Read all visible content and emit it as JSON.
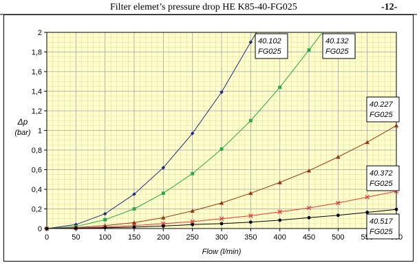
{
  "header": {
    "title": "Filter elemet’s pressure drop HE K85-40-FG025",
    "page_number": "-12-"
  },
  "chart_data": {
    "type": "line",
    "title": "Filter elemet’s pressure drop HE K85-40-FG025",
    "xlabel": "Flow (l/min)",
    "ylabel": [
      "Δp",
      "(bar)"
    ],
    "xlim": [
      0,
      600
    ],
    "ylim": [
      0,
      2
    ],
    "x_ticks": [
      "0",
      "50",
      "100",
      "150",
      "200",
      "250",
      "300",
      "350",
      "400",
      "450",
      "500",
      "550",
      "600"
    ],
    "y_ticks": [
      "0",
      "0,2",
      "0,4",
      "0,6",
      "0,8",
      "1",
      "1,2",
      "1,4",
      "1,6",
      "1,8",
      "2"
    ],
    "grid": true,
    "background": "#ffffcc",
    "series": [
      {
        "name": "40.102 FG025",
        "label_lines": [
          "40.102",
          "FG025"
        ],
        "color": "#1f2a80",
        "marker": "diamond",
        "x": [
          0,
          50,
          100,
          150,
          200,
          250,
          300,
          350
        ],
        "y": [
          0,
          0.04,
          0.15,
          0.35,
          0.62,
          0.97,
          1.39,
          1.9
        ]
      },
      {
        "name": "40.132 FG025",
        "label_lines": [
          "40.132",
          "FG025"
        ],
        "color": "#22aa44",
        "marker": "square",
        "x": [
          0,
          50,
          100,
          150,
          200,
          250,
          300,
          350,
          400,
          450
        ],
        "y": [
          0,
          0.02,
          0.09,
          0.2,
          0.36,
          0.56,
          0.81,
          1.1,
          1.44,
          1.82
        ]
      },
      {
        "name": "40.227 FG025",
        "label_lines": [
          "40.227",
          "FG025"
        ],
        "color": "#993311",
        "marker": "triangle",
        "x": [
          0,
          50,
          100,
          150,
          200,
          250,
          300,
          350,
          400,
          450,
          500,
          550,
          600
        ],
        "y": [
          0,
          0.01,
          0.03,
          0.06,
          0.11,
          0.18,
          0.26,
          0.36,
          0.47,
          0.59,
          0.73,
          0.88,
          1.05
        ]
      },
      {
        "name": "40.372 FG025",
        "label_lines": [
          "40.372",
          "FG025"
        ],
        "color": "#ee3333",
        "marker": "cross",
        "x": [
          0,
          50,
          100,
          150,
          200,
          250,
          300,
          350,
          400,
          450,
          500,
          550,
          600
        ],
        "y": [
          0,
          0.005,
          0.015,
          0.03,
          0.05,
          0.07,
          0.1,
          0.13,
          0.17,
          0.21,
          0.26,
          0.32,
          0.38
        ]
      },
      {
        "name": "40.517 FG025",
        "label_lines": [
          "40.517",
          "FG025"
        ],
        "color": "#000000",
        "marker": "circle",
        "x": [
          0,
          50,
          100,
          150,
          200,
          250,
          300,
          350,
          400,
          450,
          500,
          550,
          600
        ],
        "y": [
          0,
          0.003,
          0.008,
          0.015,
          0.025,
          0.04,
          0.05,
          0.065,
          0.085,
          0.11,
          0.135,
          0.165,
          0.195
        ]
      }
    ]
  }
}
